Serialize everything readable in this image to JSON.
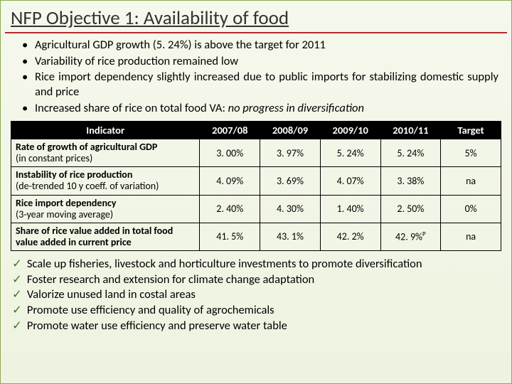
{
  "title": "NFP Objective 1: Availability of food",
  "bullets": [
    "Agricultural GDP growth (5. 24%) is above the target for 2011",
    "Variability of rice production remained low",
    "Rice import dependency slightly increased due to public imports for stabilizing domestic supply and price",
    "Increased share of rice on total food VA: "
  ],
  "bullet4_italic": "no progress in diversification",
  "table": {
    "headers": [
      "Indicator",
      "2007/08",
      "2008/09",
      "2009/10",
      "2010/11",
      "Target"
    ],
    "rows": [
      {
        "label": "Rate of growth of agricultural GDP",
        "sub": "(in constant prices)",
        "vals": [
          "3. 00%",
          "3. 97%",
          "5. 24%",
          "5. 24%",
          "5%"
        ]
      },
      {
        "label": "Instability of rice production",
        "sub": "(de-trended 10 y coeff. of variation)",
        "vals": [
          "4. 09%",
          "3. 69%",
          "4. 07%",
          "3. 38%",
          "na"
        ]
      },
      {
        "label": "Rice import dependency",
        "sub": "(3-year moving average)",
        "vals": [
          "2. 40%",
          "4. 30%",
          "1. 40%",
          "2. 50%",
          "0%"
        ]
      },
      {
        "label": "Share of rice value added in total food value added in current price",
        "sub": "",
        "vals": [
          "41. 5%",
          "43. 1%",
          "42. 2%",
          "42. 9%P",
          "na"
        ]
      }
    ]
  },
  "checks": [
    "Scale up fisheries, livestock and horticulture investments to promote diversification",
    "Foster research and extension for climate change adaptation",
    "Valorize unused land in costal areas",
    "Promote use efficiency and quality of agrochemicals",
    "Promote water use efficiency and preserve water table"
  ],
  "tick_glyph": "✓"
}
